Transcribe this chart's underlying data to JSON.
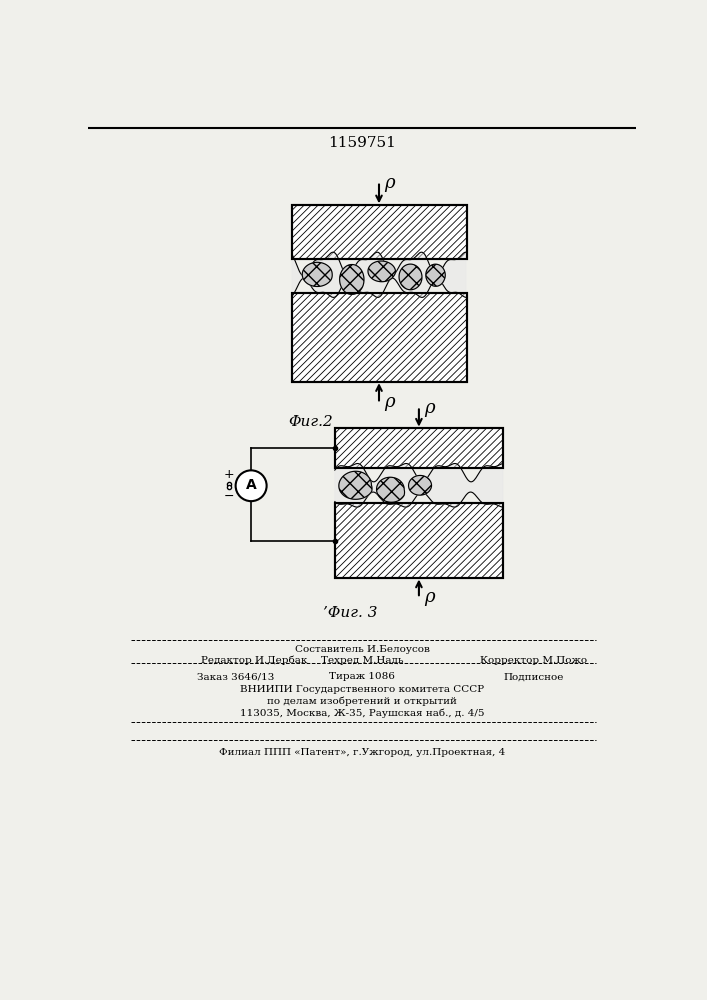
{
  "patent_number": "1159751",
  "background_color": "#f0f0eb",
  "fig2_label": "Φиг.2",
  "fig3_label": "Φиг. 3",
  "pressure_label": "ρ",
  "footer_editor": "Редактор И.Дербак",
  "footer_composer": "Составитель И.Белоусов",
  "footer_techred": "Техред М.Надь",
  "footer_corrector": "Корректор М.Пожо",
  "footer_order": "Заказ 3646/13",
  "footer_tirazh": "Тираж 1086",
  "footer_podpisnoe": "Подписное",
  "footer_vnipi": "ВНИИПИ Государственного комитета СССР",
  "footer_po_delam": "по делам изобретений и открытий",
  "footer_address": "113035, Москва, Ж-35, Раушская наб., д. 4/5",
  "footer_filial": "Филиал ППП «Патент», г.Ужгород, ул.Проектная, 4"
}
